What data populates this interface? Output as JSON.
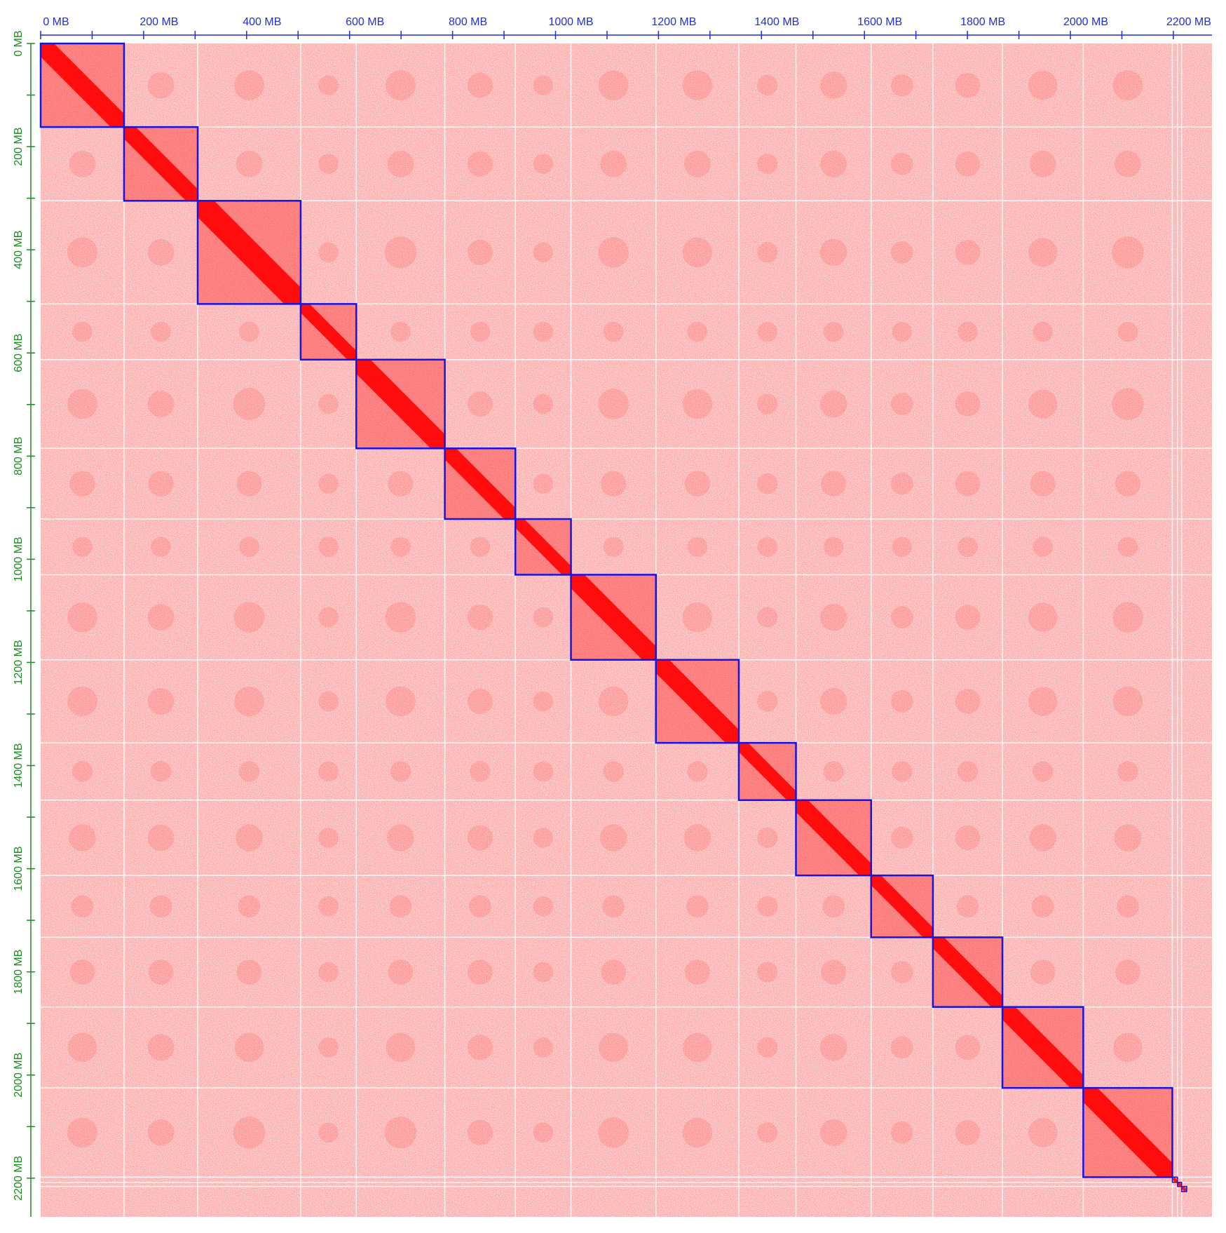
{
  "chart_data": {
    "type": "heatmap",
    "title": "",
    "xlabel": "",
    "ylabel": "",
    "unit": "MB",
    "axis_range_mb": [
      0,
      2275
    ],
    "x_ticks": [
      {
        "value": 0,
        "label": "0 MB"
      },
      {
        "value": 200,
        "label": "200 MB"
      },
      {
        "value": 400,
        "label": "400 MB"
      },
      {
        "value": 600,
        "label": "600 MB"
      },
      {
        "value": 800,
        "label": "800 MB"
      },
      {
        "value": 1000,
        "label": "1000 MB"
      },
      {
        "value": 1200,
        "label": "1200 MB"
      },
      {
        "value": 1400,
        "label": "1400 MB"
      },
      {
        "value": 1600,
        "label": "1600 MB"
      },
      {
        "value": 1800,
        "label": "1800 MB"
      },
      {
        "value": 2000,
        "label": "2000 MB"
      },
      {
        "value": 2200,
        "label": "2200 MB"
      }
    ],
    "y_ticks": [
      {
        "value": 0,
        "label": "0 MB"
      },
      {
        "value": 200,
        "label": "200 MB"
      },
      {
        "value": 400,
        "label": "400 MB"
      },
      {
        "value": 600,
        "label": "600 MB"
      },
      {
        "value": 800,
        "label": "800 MB"
      },
      {
        "value": 1000,
        "label": "1000 MB"
      },
      {
        "value": 1200,
        "label": "1200 MB"
      },
      {
        "value": 1400,
        "label": "1400 MB"
      },
      {
        "value": 1600,
        "label": "1600 MB"
      },
      {
        "value": 1800,
        "label": "1800 MB"
      },
      {
        "value": 2000,
        "label": "2000 MB"
      },
      {
        "value": 2200,
        "label": "2200 MB"
      }
    ],
    "chromosome_blocks_mb": [
      {
        "start": 0,
        "end": 162
      },
      {
        "start": 162,
        "end": 305
      },
      {
        "start": 305,
        "end": 505
      },
      {
        "start": 505,
        "end": 613
      },
      {
        "start": 613,
        "end": 785
      },
      {
        "start": 785,
        "end": 922
      },
      {
        "start": 922,
        "end": 1030
      },
      {
        "start": 1030,
        "end": 1195
      },
      {
        "start": 1195,
        "end": 1356
      },
      {
        "start": 1356,
        "end": 1467
      },
      {
        "start": 1467,
        "end": 1613
      },
      {
        "start": 1613,
        "end": 1733
      },
      {
        "start": 1733,
        "end": 1868
      },
      {
        "start": 1868,
        "end": 2025
      },
      {
        "start": 2025,
        "end": 2198
      },
      {
        "start": 2198,
        "end": 2208
      },
      {
        "start": 2208,
        "end": 2216
      },
      {
        "start": 2216,
        "end": 2226
      }
    ],
    "colors": {
      "background": "#fbe0e0",
      "contact": "#ff0000",
      "block_outline": "#1414e6",
      "grid": "#ffffff",
      "x_axis": "#1f2fd8",
      "y_axis": "#1d8a22"
    },
    "legend": "none"
  }
}
